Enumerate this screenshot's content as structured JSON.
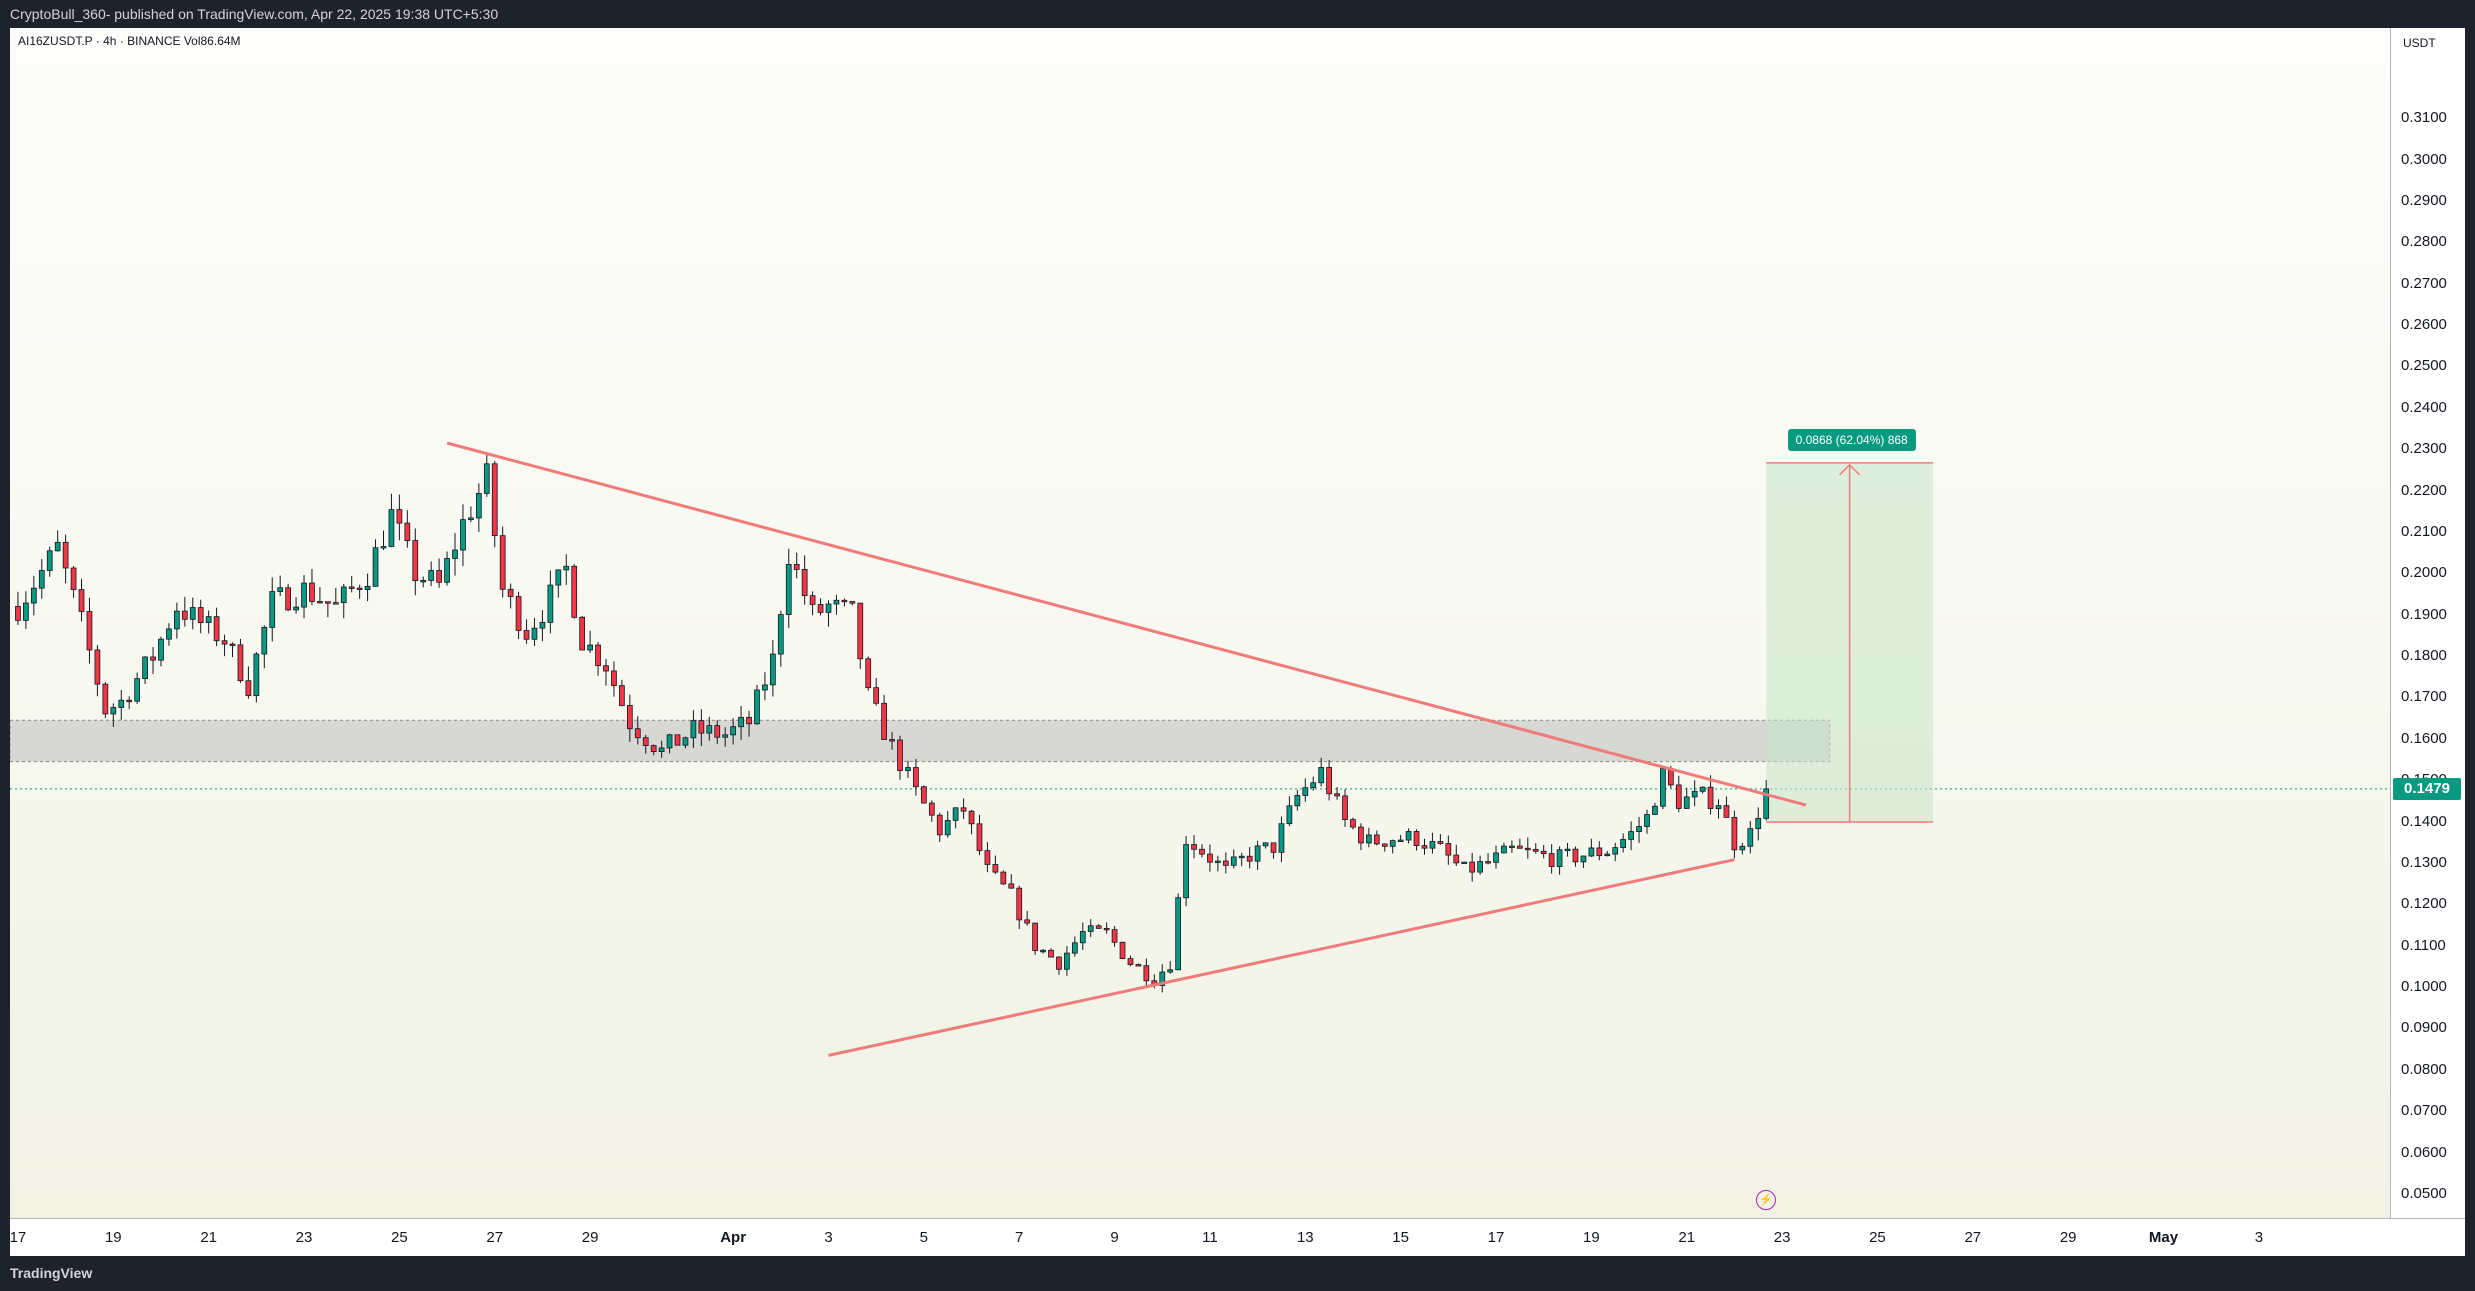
{
  "header": {
    "publish_line": "CryptoBull_360- published on TradingView.com, Apr 22, 2025 19:38 UTC+5:30"
  },
  "symbol": {
    "line": "AI16ZUSDT.P · 4h · BINANCE  Vol86.64M"
  },
  "footer": {
    "brand": "TradingView"
  },
  "colors": {
    "up": "#089981",
    "down": "#f23645",
    "trendline": "#f07b7b",
    "zone": "#b8b8b8",
    "target": "#c8e6c9"
  },
  "chart_data": {
    "type": "candlestick",
    "symbol": "AI16ZUSDT.P",
    "interval": "4h",
    "exchange": "BINANCE",
    "volume": "Vol86.64M",
    "currency": "USDT",
    "last_price": 0.1479,
    "y_ticks": [
      "0.0500",
      "0.0600",
      "0.0700",
      "0.0800",
      "0.0900",
      "0.1000",
      "0.1100",
      "0.1200",
      "0.1300",
      "0.1400",
      "0.1500",
      "0.1600",
      "0.1700",
      "0.1800",
      "0.1900",
      "0.2000",
      "0.2100",
      "0.2200",
      "0.2300",
      "0.2400",
      "0.2500",
      "0.2600",
      "0.2700",
      "0.2800",
      "0.2900",
      "0.3000",
      "0.3100"
    ],
    "ylim": [
      0.0442,
      0.3318
    ],
    "x_start": "2025-03-17",
    "x_ticks": [
      {
        "label": "17",
        "date": "2025-03-17"
      },
      {
        "label": "19",
        "date": "2025-03-19"
      },
      {
        "label": "21",
        "date": "2025-03-21"
      },
      {
        "label": "23",
        "date": "2025-03-23"
      },
      {
        "label": "25",
        "date": "2025-03-25"
      },
      {
        "label": "27",
        "date": "2025-03-27"
      },
      {
        "label": "29",
        "date": "2025-03-29"
      },
      {
        "label": "Apr",
        "date": "2025-04-01",
        "bold": true
      },
      {
        "label": "3",
        "date": "2025-04-03"
      },
      {
        "label": "5",
        "date": "2025-04-05"
      },
      {
        "label": "7",
        "date": "2025-04-07"
      },
      {
        "label": "9",
        "date": "2025-04-09"
      },
      {
        "label": "11",
        "date": "2025-04-11"
      },
      {
        "label": "13",
        "date": "2025-04-13"
      },
      {
        "label": "15",
        "date": "2025-04-15"
      },
      {
        "label": "17",
        "date": "2025-04-17"
      },
      {
        "label": "19",
        "date": "2025-04-19"
      },
      {
        "label": "21",
        "date": "2025-04-21"
      },
      {
        "label": "23",
        "date": "2025-04-23"
      },
      {
        "label": "25",
        "date": "2025-04-25"
      },
      {
        "label": "27",
        "date": "2025-04-27"
      },
      {
        "label": "29",
        "date": "2025-04-29"
      },
      {
        "label": "May",
        "date": "2025-05-01",
        "bold": true
      },
      {
        "label": "3",
        "date": "2025-05-03"
      }
    ],
    "xlim": [
      "2025-03-16 20:00",
      "2025-05-05 18:00"
    ],
    "anchors": [
      [
        "2025-03-17 00:00",
        0.192
      ],
      [
        "2025-03-17 20:00",
        0.206
      ],
      [
        "2025-03-18 08:00",
        0.188
      ],
      [
        "2025-03-18 20:00",
        0.167
      ],
      [
        "2025-03-19 04:00",
        0.169
      ],
      [
        "2025-03-19 20:00",
        0.18
      ],
      [
        "2025-03-20 08:00",
        0.192
      ],
      [
        "2025-03-20 20:00",
        0.188
      ],
      [
        "2025-03-21 08:00",
        0.184
      ],
      [
        "2025-03-21 20:00",
        0.173
      ],
      [
        "2025-03-22 08:00",
        0.193
      ],
      [
        "2025-03-23 00:00",
        0.196
      ],
      [
        "2025-03-23 16:00",
        0.192
      ],
      [
        "2025-03-24 08:00",
        0.2
      ],
      [
        "2025-03-24 20:00",
        0.214
      ],
      [
        "2025-03-25 08:00",
        0.2
      ],
      [
        "2025-03-25 20:00",
        0.197
      ],
      [
        "2025-03-26 08:00",
        0.212
      ],
      [
        "2025-03-26 20:00",
        0.223
      ],
      [
        "2025-03-27 04:00",
        0.196
      ],
      [
        "2025-03-27 16:00",
        0.186
      ],
      [
        "2025-03-28 00:00",
        0.191
      ],
      [
        "2025-03-28 12:00",
        0.201
      ],
      [
        "2025-03-28 20:00",
        0.184
      ],
      [
        "2025-03-29 08:00",
        0.178
      ],
      [
        "2025-03-29 20:00",
        0.164
      ],
      [
        "2025-03-30 12:00",
        0.157
      ],
      [
        "2025-03-31 04:00",
        0.162
      ],
      [
        "2025-03-31 20:00",
        0.161
      ],
      [
        "2025-04-01 08:00",
        0.164
      ],
      [
        "2025-04-01 20:00",
        0.179
      ],
      [
        "2025-04-02 04:00",
        0.205
      ],
      [
        "2025-04-02 16:00",
        0.19
      ],
      [
        "2025-04-03 00:00",
        0.192
      ],
      [
        "2025-04-03 12:00",
        0.19
      ],
      [
        "2025-04-03 20:00",
        0.17
      ],
      [
        "2025-04-04 08:00",
        0.158
      ],
      [
        "2025-04-04 20:00",
        0.147
      ],
      [
        "2025-04-05 08:00",
        0.138
      ],
      [
        "2025-04-05 20:00",
        0.143
      ],
      [
        "2025-04-06 08:00",
        0.128
      ],
      [
        "2025-04-06 20:00",
        0.122
      ],
      [
        "2025-04-07 08:00",
        0.11
      ],
      [
        "2025-04-07 20:00",
        0.106
      ],
      [
        "2025-04-08 08:00",
        0.113
      ],
      [
        "2025-04-08 20:00",
        0.113
      ],
      [
        "2025-04-09 08:00",
        0.106
      ],
      [
        "2025-04-09 20:00",
        0.102
      ],
      [
        "2025-04-10 04:00",
        0.106
      ],
      [
        "2025-04-10 12:00",
        0.136
      ],
      [
        "2025-04-10 20:00",
        0.133
      ],
      [
        "2025-04-11 08:00",
        0.128
      ],
      [
        "2025-04-11 20:00",
        0.132
      ],
      [
        "2025-04-12 08:00",
        0.134
      ],
      [
        "2025-04-12 20:00",
        0.146
      ],
      [
        "2025-04-13 08:00",
        0.152
      ],
      [
        "2025-04-13 20:00",
        0.14
      ],
      [
        "2025-04-14 08:00",
        0.135
      ],
      [
        "2025-04-14 20:00",
        0.136
      ],
      [
        "2025-04-15 08:00",
        0.136
      ],
      [
        "2025-04-15 20:00",
        0.133
      ],
      [
        "2025-04-16 08:00",
        0.128
      ],
      [
        "2025-04-16 20:00",
        0.13
      ],
      [
        "2025-04-17 08:00",
        0.133
      ],
      [
        "2025-04-17 20:00",
        0.132
      ],
      [
        "2025-04-18 08:00",
        0.131
      ],
      [
        "2025-04-18 20:00",
        0.132
      ],
      [
        "2025-04-19 08:00",
        0.133
      ],
      [
        "2025-04-19 20:00",
        0.137
      ],
      [
        "2025-04-20 04:00",
        0.141
      ],
      [
        "2025-04-20 12:00",
        0.151
      ],
      [
        "2025-04-20 20:00",
        0.145
      ],
      [
        "2025-04-21 08:00",
        0.146
      ],
      [
        "2025-04-21 16:00",
        0.145
      ],
      [
        "2025-04-22 00:00",
        0.135
      ],
      [
        "2025-04-22 08:00",
        0.137
      ],
      [
        "2025-04-22 16:00",
        0.148
      ]
    ],
    "upper_trendline": [
      [
        "2025-03-26 00:00",
        0.2315
      ],
      [
        "2025-04-23 12:00",
        0.144
      ]
    ],
    "lower_trendline": [
      [
        "2025-04-03 00:00",
        0.0835
      ],
      [
        "2025-04-22 00:00",
        0.1308
      ]
    ],
    "resistance_zone": {
      "price_top": 0.1645,
      "price_bottom": 0.1545,
      "date_end": "2025-04-24 00:00"
    },
    "last_price_line": 0.1479,
    "target_box": {
      "entry": 0.1399,
      "target": 0.2267,
      "date_start": "2025-04-22 16:00",
      "date_end": "2025-04-26 04:00"
    },
    "measure_label": "0.0868 (62.04%) 868"
  }
}
